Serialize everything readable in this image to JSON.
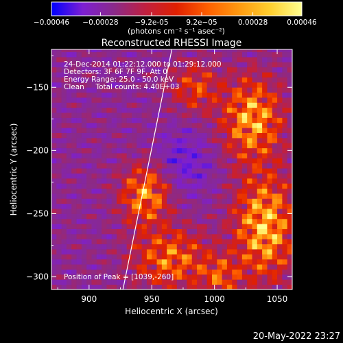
{
  "chart_data": {
    "type": "heatmap",
    "title": "Reconstructed RHESSI Image",
    "xlabel": "Heliocentric X (arcsec)",
    "ylabel": "Heliocentric Y (arcsec)",
    "xlim": [
      870,
      1062
    ],
    "ylim": [
      -310,
      -120
    ],
    "x_ticks": [
      "900",
      "950",
      "1000",
      "1050"
    ],
    "y_ticks": [
      "-150",
      "-200",
      "-250",
      "-300"
    ],
    "colorbar": {
      "min": -0.00046,
      "max": 0.00046,
      "ticks": [
        "-0.00046",
        "-0.00028",
        "-9.2e-05",
        "9.2e-05",
        "0.00028",
        "0.00046"
      ],
      "label": "(photons cm⁻² s⁻¹ asec⁻²)",
      "colormap": [
        "#0000ff",
        "#7d1fd2",
        "#8a2a8a",
        "#c02040",
        "#e02000",
        "#ff6000",
        "#ff9a10",
        "#ffd030",
        "#ffff90"
      ]
    },
    "annotations": [
      "24-Dec-2014 01:22:12.000 to 01:29:12.000",
      "Detectors: 3F 6F 7F 9F, Att 0",
      "Energy Range: 25.0 - 50.0 keV",
      "Clean     Total counts: 4.40E+03"
    ],
    "peak_label": "Position of Peak = [1039,-260]",
    "peak_position": [
      1039,
      -260
    ],
    "limb_line": [
      [
        927,
        -310
      ],
      [
        966,
        -120
      ]
    ]
  },
  "footer_timestamp": "20-May-2022 23:27"
}
